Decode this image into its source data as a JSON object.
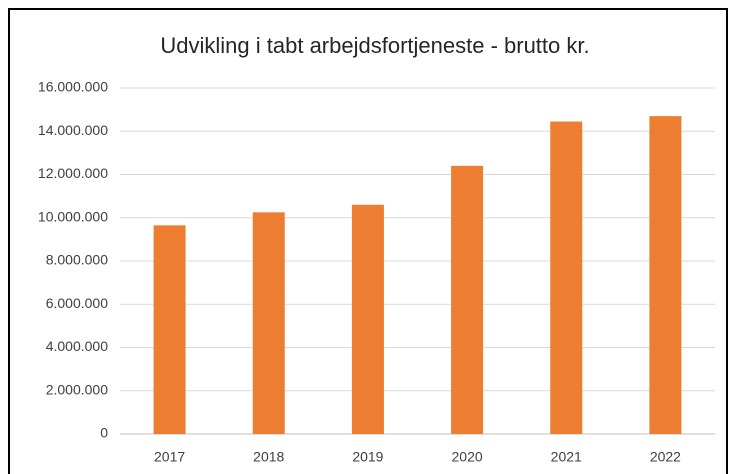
{
  "chart_data": {
    "type": "bar",
    "title": "Udvikling i tabt arbejdsfortjeneste - brutto kr.",
    "categories": [
      "2017",
      "2018",
      "2019",
      "2020",
      "2021",
      "2022"
    ],
    "values": [
      9650000,
      10250000,
      10600000,
      12400000,
      14450000,
      14700000
    ],
    "color": "#ed7d31",
    "ylim": [
      0,
      16000000
    ],
    "yticks": [
      0,
      {
        "value": 2000000,
        "label": "2.000.000"
      },
      {
        "value": 4000000,
        "label": "4.000.000"
      },
      {
        "value": 6000000,
        "label": "6.000.000"
      },
      {
        "value": 8000000,
        "label": "8.000.000"
      },
      {
        "value": 10000000,
        "label": "10.000.000"
      },
      {
        "value": 12000000,
        "label": "12.000.000"
      },
      {
        "value": 14000000,
        "label": "14.000.000"
      },
      {
        "value": 16000000,
        "label": "16.000.000"
      }
    ],
    "grid": true
  }
}
